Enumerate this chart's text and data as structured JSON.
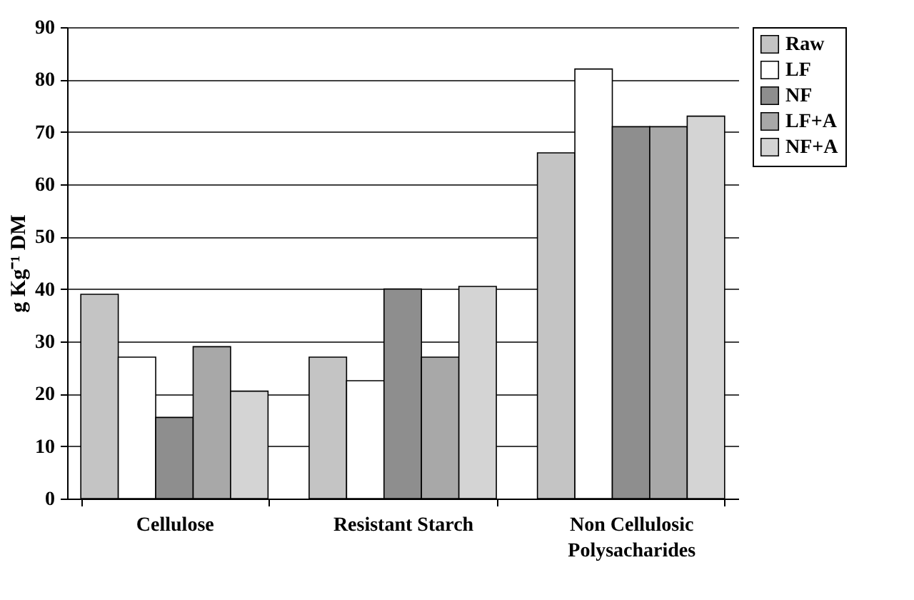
{
  "chart_data": {
    "type": "bar",
    "ylabel": "g Kg⁻¹ DM",
    "categories": [
      "Cellulose",
      "Resistant Starch",
      "Non Cellulosic Polysacharides"
    ],
    "series": [
      {
        "name": "Raw",
        "color": "#c4c4c4",
        "values": [
          39,
          27,
          66
        ]
      },
      {
        "name": "LF",
        "color": "#ffffff",
        "values": [
          27,
          22.5,
          82
        ]
      },
      {
        "name": "NF",
        "color": "#8e8e8e",
        "values": [
          15.5,
          40,
          71
        ]
      },
      {
        "name": "LF+A",
        "color": "#a8a8a8",
        "values": [
          29,
          27,
          71
        ]
      },
      {
        "name": "NF+A",
        "color": "#d4d4d4",
        "values": [
          20.5,
          40.5,
          73
        ]
      }
    ],
    "ylim": [
      0,
      90
    ],
    "yticks": [
      0,
      10,
      20,
      30,
      40,
      50,
      60,
      70,
      80,
      90
    ],
    "grid": "y",
    "legend": "top right"
  }
}
